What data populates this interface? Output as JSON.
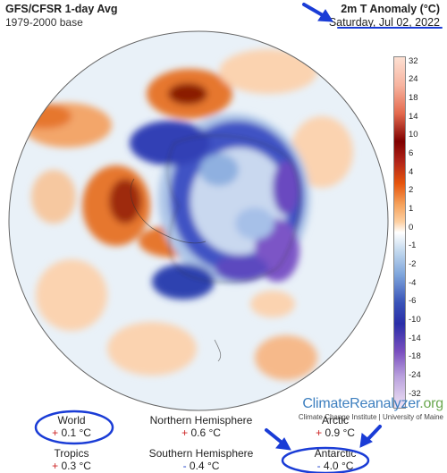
{
  "header": {
    "source": "GFS/CFSR 1-day Avg",
    "base": "1979-2000 base",
    "variable": "2m T Anomaly (°C)",
    "date": "Saturday, Jul 02, 2022"
  },
  "legend": {
    "ticks": [
      "32",
      "24",
      "18",
      "14",
      "10",
      "6",
      "4",
      "2",
      "1",
      "0",
      "-1",
      "-2",
      "-4",
      "-6",
      "-10",
      "-14",
      "-18",
      "-24",
      "-32"
    ],
    "colors": {
      "hot": "#7f0000",
      "warm": "#e6550d",
      "mild": "#fdd0a2",
      "neutral": "#ffffff",
      "cool": "#c6dbef",
      "cold": "#3953b8",
      "frigid": "#7a4fbf",
      "extreme": "#efe3f5"
    }
  },
  "brand": {
    "name_main": "ClimateReanalyzer",
    "name_suffix": ".org",
    "subtitle": "Climate Change Institute | University of Maine"
  },
  "stats": [
    {
      "label": "World",
      "sign": "+",
      "value": "0.1 °C"
    },
    {
      "label": "Northern Hemisphere",
      "sign": "+",
      "value": "0.6 °C"
    },
    {
      "label": "Arctic",
      "sign": "+",
      "value": "0.9 °C"
    },
    {
      "label": "Tropics",
      "sign": "+",
      "value": "0.3 °C"
    },
    {
      "label": "Southern Hemisphere",
      "sign": "-",
      "value": "0.4 °C"
    },
    {
      "label": "Antarctic",
      "sign": "-",
      "value": "4.0 °C"
    }
  ],
  "annotations": {
    "color": "#1a3cd6"
  }
}
